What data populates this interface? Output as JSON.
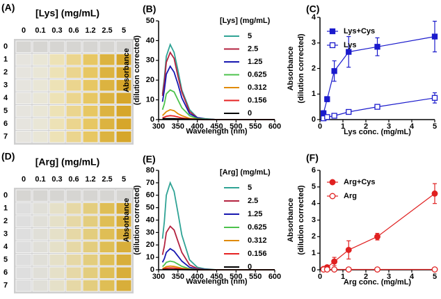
{
  "plates": [
    {
      "label": "(A)",
      "title": "[Lys] (mg/mL)",
      "columns": [
        "0",
        "0.1",
        "0.3",
        "0.6",
        "1.2",
        "2.5",
        "5"
      ],
      "rows": [
        "0",
        "1",
        "2",
        "3",
        "4",
        "5",
        "6",
        "7"
      ]
    },
    {
      "label": "(D)",
      "title": "[Arg] (mg/mL)",
      "columns": [
        "0",
        "0.1",
        "0.3",
        "0.6",
        "1.2",
        "2.5",
        "5"
      ],
      "rows": [
        "0",
        "1",
        "2",
        "3",
        "4",
        "5",
        "6",
        "7"
      ]
    }
  ],
  "chart_data": [
    {
      "label": "(B)",
      "type": "line",
      "xlabel": "Wavelength (nm)",
      "ylabel": [
        "Absorbance",
        "(dilution corrected)"
      ],
      "legend_title": "[Lys] (mg/mL)",
      "x": [
        310,
        315,
        320,
        330,
        340,
        350,
        360,
        380,
        400,
        420,
        450,
        500,
        550,
        600
      ],
      "xlim": [
        300,
        600
      ],
      "xticks": [
        300,
        350,
        400,
        450,
        500,
        550,
        600
      ],
      "ylim": [
        0,
        50
      ],
      "yticks": [
        0,
        10,
        20,
        30,
        40,
        50
      ],
      "series": [
        {
          "name": "5",
          "color": "#2fa395",
          "values": [
            13,
            21,
            32,
            38,
            34,
            25,
            15,
            5,
            1,
            0.5,
            0,
            0,
            0,
            0
          ]
        },
        {
          "name": "2.5",
          "color": "#b3223f",
          "values": [
            12,
            19,
            29,
            34,
            31,
            22,
            14,
            4,
            1,
            0.3,
            0,
            0,
            0,
            0
          ]
        },
        {
          "name": "1.25",
          "color": "#1717b0",
          "values": [
            9,
            15,
            23,
            27,
            24,
            18,
            11,
            3,
            1,
            0.3,
            0,
            0,
            0,
            0
          ]
        },
        {
          "name": "0.625",
          "color": "#4cc24c",
          "values": [
            5,
            8,
            13,
            15,
            14,
            10,
            6,
            2,
            0.5,
            0.2,
            0,
            0,
            0,
            0
          ]
        },
        {
          "name": "0.312",
          "color": "#e08a00",
          "values": [
            2,
            3,
            4,
            5,
            4.5,
            3,
            2,
            0.6,
            0.2,
            0,
            0,
            0,
            0,
            0
          ]
        },
        {
          "name": "0.156",
          "color": "#e52222",
          "values": [
            1,
            1.2,
            1.7,
            2,
            1.8,
            1.3,
            0.8,
            0.3,
            0.1,
            0,
            0,
            0,
            0,
            0
          ]
        },
        {
          "name": "0",
          "color": "#000000",
          "values": [
            0.5,
            0.5,
            0.5,
            0.5,
            0.5,
            0.4,
            0.3,
            0.2,
            0.1,
            0,
            0,
            0,
            0,
            0
          ]
        }
      ]
    },
    {
      "label": "(C)",
      "type": "scatter",
      "xlabel": "Lys conc. (mg/mL)",
      "ylabel": [
        "Absorbance",
        "(dilution corrected)"
      ],
      "x": [
        0.156,
        0.312,
        0.625,
        1.25,
        2.5,
        5
      ],
      "xlim": [
        0,
        5
      ],
      "xticks": [
        0,
        1,
        2,
        3,
        4,
        5
      ],
      "ylim": [
        0,
        4
      ],
      "yticks": [
        0,
        1,
        2,
        3,
        4
      ],
      "series": [
        {
          "name": "Lys+Cys",
          "color": "#1a1acc",
          "marker": "square",
          "filled": true,
          "values": [
            0.25,
            0.8,
            1.9,
            2.65,
            2.85,
            3.25
          ],
          "errors": [
            0.1,
            0.1,
            0.4,
            0.6,
            0.35,
            0.6
          ]
        },
        {
          "name": "Lys",
          "color": "#1a1acc",
          "marker": "square",
          "filled": false,
          "values": [
            0.05,
            0.1,
            0.15,
            0.3,
            0.5,
            0.85
          ],
          "errors": [
            0.03,
            0.03,
            0.05,
            0.05,
            0.08,
            0.2
          ]
        }
      ]
    },
    {
      "label": "(E)",
      "type": "line",
      "xlabel": "Wavelength (nm)",
      "ylabel": [
        "Absorbance",
        "(dilution corrected)"
      ],
      "legend_title": "[Arg] (mg/mL)",
      "x": [
        310,
        315,
        320,
        330,
        340,
        350,
        360,
        380,
        400,
        420,
        450,
        500,
        550,
        600
      ],
      "xlim": [
        300,
        600
      ],
      "xticks": [
        300,
        350,
        400,
        450,
        500,
        550,
        600
      ],
      "ylim": [
        0,
        80
      ],
      "yticks": [
        0,
        10,
        20,
        30,
        40,
        50,
        60,
        70,
        80
      ],
      "series": [
        {
          "name": "5",
          "color": "#2fa395",
          "values": [
            25,
            39,
            60,
            70,
            63,
            46,
            28,
            8,
            2,
            0.7,
            0,
            0,
            0,
            0
          ]
        },
        {
          "name": "2.5",
          "color": "#b3223f",
          "values": [
            12,
            19,
            30,
            35,
            32,
            23,
            14,
            4,
            1,
            0.3,
            0,
            0,
            0,
            0
          ]
        },
        {
          "name": "1.25",
          "color": "#1717b0",
          "values": [
            6,
            9,
            14,
            17,
            15,
            11,
            7,
            2,
            0.5,
            0.2,
            0,
            0,
            0,
            0
          ]
        },
        {
          "name": "0.625",
          "color": "#4cc24c",
          "values": [
            2.5,
            4,
            6,
            7,
            6.3,
            4.6,
            2.8,
            0.8,
            0.2,
            0,
            0,
            0,
            0,
            0
          ]
        },
        {
          "name": "0.312",
          "color": "#e08a00",
          "values": [
            1,
            1.6,
            2.5,
            3,
            2.7,
            2,
            1.2,
            0.4,
            0.1,
            0,
            0,
            0,
            0,
            0
          ]
        },
        {
          "name": "0.156",
          "color": "#e52222",
          "values": [
            0.5,
            0.8,
            1.3,
            1.5,
            1.4,
            1,
            0.6,
            0.2,
            0,
            0,
            0,
            0,
            0,
            0
          ]
        },
        {
          "name": "0",
          "color": "#000000",
          "values": [
            0.3,
            0.3,
            0.3,
            0.3,
            0.3,
            0.2,
            0.2,
            0.1,
            0,
            0,
            0,
            0,
            0,
            0
          ]
        }
      ]
    },
    {
      "label": "(F)",
      "type": "scatter",
      "xlabel": "Arg conc. (mg/mL)",
      "ylabel": [
        "Absorbance",
        "(dilution corrected)"
      ],
      "x": [
        0.156,
        0.312,
        0.625,
        1.25,
        2.5,
        5
      ],
      "xlim": [
        0,
        5
      ],
      "xticks": [
        0,
        1,
        2,
        3,
        4,
        5
      ],
      "ylim": [
        0,
        6
      ],
      "yticks": [
        0,
        1,
        2,
        3,
        4,
        5,
        6
      ],
      "series": [
        {
          "name": "Arg+Cys",
          "color": "#e02020",
          "marker": "circle",
          "filled": true,
          "values": [
            0.05,
            0.15,
            0.5,
            1.2,
            2.0,
            4.6
          ],
          "errors": [
            0.05,
            0.1,
            0.25,
            0.55,
            0.2,
            0.6
          ]
        },
        {
          "name": "Arg",
          "color": "#e02020",
          "marker": "circle",
          "filled": false,
          "values": [
            0.02,
            0.02,
            0.02,
            0.02,
            0.02,
            0.02
          ],
          "errors": [
            0,
            0,
            0,
            0,
            0,
            0
          ]
        }
      ]
    }
  ]
}
